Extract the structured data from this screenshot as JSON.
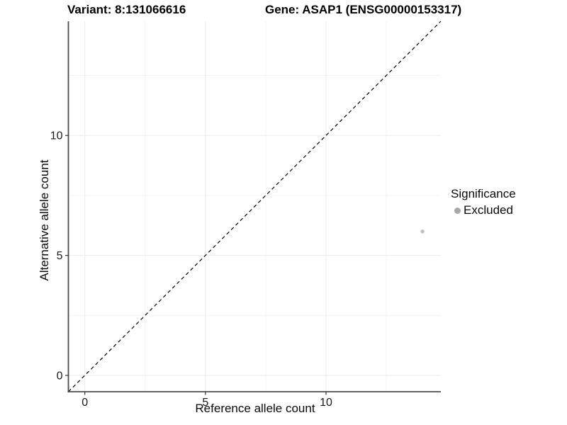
{
  "titles": {
    "variant": "Variant: 8:131066616",
    "gene": "Gene: ASAP1 (ENSG00000153317)"
  },
  "chart_data": {
    "type": "scatter",
    "title_left": "Variant: 8:131066616",
    "title_right": "Gene: ASAP1 (ENSG00000153317)",
    "xlabel": "Reference allele count",
    "ylabel": "Alternative allele count",
    "xlim": [
      -0.68,
      14.76
    ],
    "ylim": [
      -0.68,
      14.76
    ],
    "x_major_ticks": [
      0,
      5,
      10
    ],
    "y_major_ticks": [
      0,
      5,
      10
    ],
    "x_minor_ticks": [
      2.5,
      7.5,
      12.5
    ],
    "y_minor_ticks": [
      2.5,
      7.5,
      12.5
    ],
    "grid": "on",
    "legend_position": "right",
    "reference_line": {
      "type": "identity",
      "style": "dashed",
      "color": "#000000"
    },
    "series": [
      {
        "name": "Excluded",
        "color": "#bdbdbd",
        "points": [
          {
            "x": 14,
            "y": 6
          }
        ]
      }
    ],
    "legend": {
      "title": "Significance",
      "items": [
        {
          "label": "Excluded",
          "color": "#a8a8a8"
        }
      ]
    },
    "colors": {
      "axis_line": "#4d4d4d",
      "grid_major": "#ebebeb",
      "grid_minor": "#f3f3f3",
      "tick_label": "#1a1a1a"
    }
  }
}
